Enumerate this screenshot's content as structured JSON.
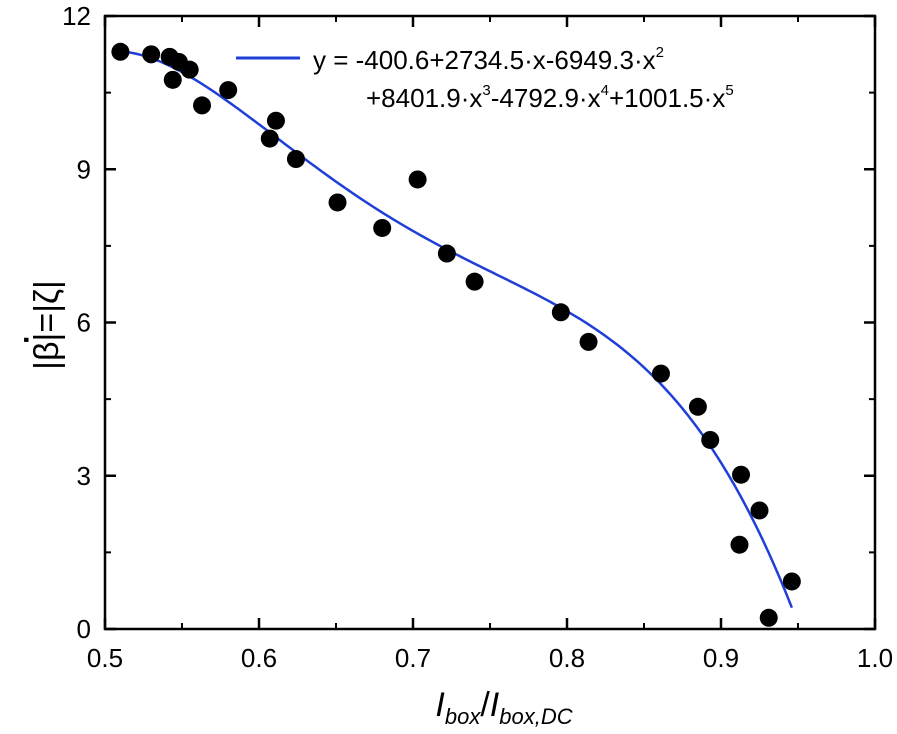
{
  "chart_data": {
    "type": "scatter",
    "xlim": [
      0.5,
      1.0
    ],
    "ylim": [
      0,
      12
    ],
    "x_ticks": [
      "0.5",
      "0.6",
      "0.7",
      "0.8",
      "0.9",
      "1.0"
    ],
    "y_ticks": [
      "0",
      "3",
      "6",
      "9",
      "12"
    ],
    "xlabel": {
      "main1": "I",
      "sub1": "box",
      "slash": "/",
      "main2": "I",
      "sub2": "box,DC"
    },
    "ylabel": {
      "text": "|β|=|ζ|",
      "dot": "·"
    },
    "grid": false,
    "legend_position": "top-right",
    "series": [
      {
        "kind": "points",
        "marker": "filled-circle",
        "color": "#000000",
        "points": [
          [
            0.51,
            11.3
          ],
          [
            0.53,
            11.25
          ],
          [
            0.542,
            11.2
          ],
          [
            0.548,
            11.1
          ],
          [
            0.555,
            10.95
          ],
          [
            0.544,
            10.75
          ],
          [
            0.563,
            10.25
          ],
          [
            0.58,
            10.55
          ],
          [
            0.607,
            9.6
          ],
          [
            0.611,
            9.95
          ],
          [
            0.624,
            9.2
          ],
          [
            0.651,
            8.35
          ],
          [
            0.68,
            7.85
          ],
          [
            0.703,
            8.8
          ],
          [
            0.722,
            7.35
          ],
          [
            0.74,
            6.8
          ],
          [
            0.796,
            6.2
          ],
          [
            0.814,
            5.62
          ],
          [
            0.861,
            5.0
          ],
          [
            0.885,
            4.35
          ],
          [
            0.893,
            3.7
          ],
          [
            0.913,
            3.02
          ],
          [
            0.912,
            1.65
          ],
          [
            0.925,
            2.32
          ],
          [
            0.931,
            0.22
          ],
          [
            0.946,
            0.93
          ]
        ]
      },
      {
        "kind": "fit-line",
        "color": "#1f3fd8",
        "x_range": [
          0.51,
          0.946
        ],
        "coefficients": [
          -400.6,
          2734.5,
          -6949.3,
          8401.9,
          -4792.9,
          1001.5
        ]
      }
    ],
    "legend": {
      "y_eq": "y = ",
      "c0": "-400.6+2734.5",
      "x1": "x-6949.3",
      "x2a": "x",
      "sup2": "2",
      "c3": "+8401.9",
      "x3": "x",
      "sup3": "3",
      "c4": "-4792.9",
      "x4": "x",
      "sup4": "4",
      "c5": "+1001.5",
      "x5": "x",
      "sup5": "5",
      "dot": "·"
    }
  }
}
